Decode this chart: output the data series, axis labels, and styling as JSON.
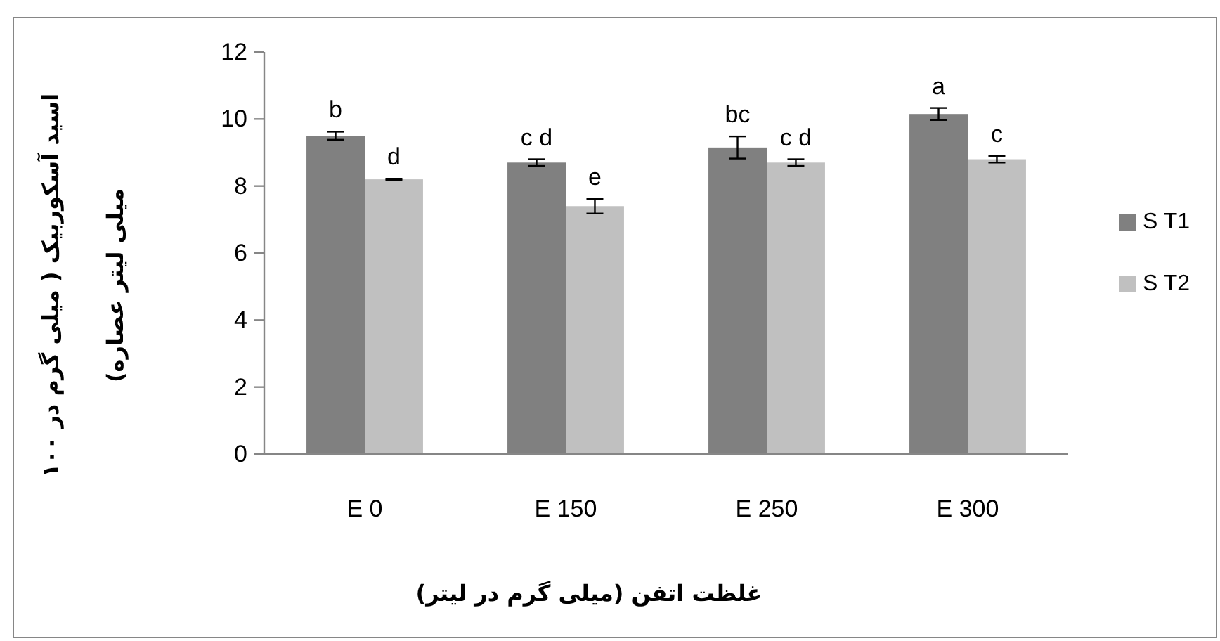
{
  "chart_data": {
    "type": "bar",
    "xlabel": "غلظت اتفن (میلی گرم در لیتر)",
    "ylabel": "اسید آسکوربیک ( میلی گرم در ۱۰۰\nمیلی لیتر عصاره)",
    "categories": [
      "E 0",
      "E 150",
      "E 250",
      "E 300"
    ],
    "series": [
      {
        "name": "S T1",
        "color": "#808080",
        "values": [
          9.5,
          8.7,
          9.15,
          10.15
        ],
        "errors": [
          0.12,
          0.1,
          0.33,
          0.18
        ],
        "value_labels": [
          "b",
          "c d",
          "bc",
          "a"
        ]
      },
      {
        "name": "S T2",
        "color": "#c0c0c0",
        "values": [
          8.2,
          7.4,
          8.7,
          8.8
        ],
        "errors": [
          0.02,
          0.22,
          0.1,
          0.1
        ],
        "value_labels": [
          "d",
          "e",
          "c d",
          "c"
        ]
      }
    ],
    "ylim": [
      0,
      12
    ],
    "yticks": [
      0,
      2,
      4,
      6,
      8,
      10,
      12
    ],
    "grid": false,
    "legend": "right"
  }
}
